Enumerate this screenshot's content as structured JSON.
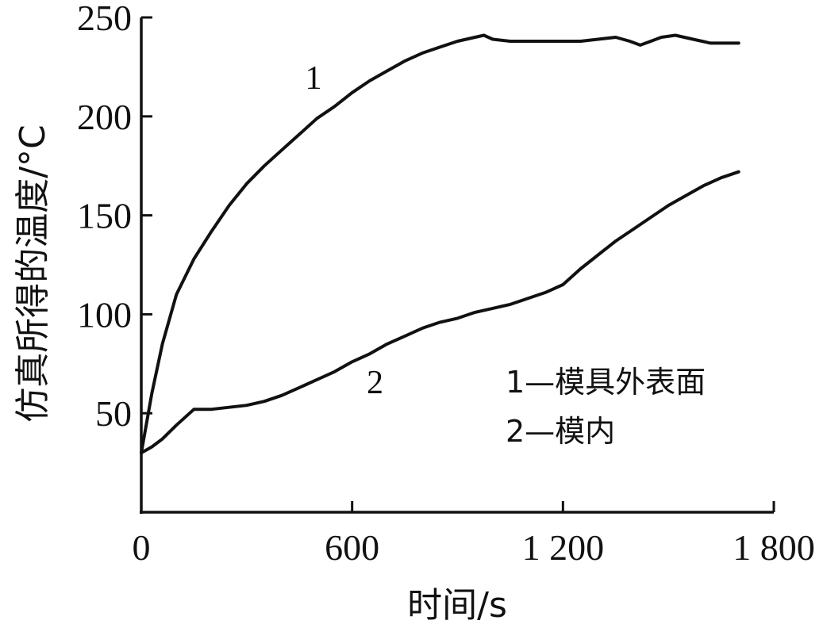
{
  "chart_data": {
    "type": "line",
    "xlabel": "时间/s",
    "ylabel": "仿真所得的温度/°C",
    "xlim": [
      0,
      1800
    ],
    "ylim": [
      0,
      250
    ],
    "x_ticks": [
      {
        "value": 0,
        "label": "0"
      },
      {
        "value": 600,
        "label": "600"
      },
      {
        "value": 1200,
        "label": "1 200"
      },
      {
        "value": 1800,
        "label": "1 800"
      }
    ],
    "y_ticks": [
      {
        "value": 50,
        "label": "50"
      },
      {
        "value": 100,
        "label": "100"
      },
      {
        "value": 150,
        "label": "150"
      },
      {
        "value": 200,
        "label": "200"
      },
      {
        "value": 250,
        "label": "250"
      }
    ],
    "grid": false,
    "series": [
      {
        "name": "1",
        "x": [
          0,
          30,
          60,
          100,
          150,
          200,
          250,
          300,
          350,
          400,
          450,
          500,
          550,
          600,
          650,
          700,
          750,
          800,
          850,
          900,
          950,
          975,
          1000,
          1050,
          1100,
          1150,
          1200,
          1250,
          1300,
          1350,
          1390,
          1420,
          1450,
          1480,
          1520,
          1570,
          1620,
          1700
        ],
        "y": [
          30,
          60,
          85,
          110,
          128,
          142,
          155,
          166,
          175,
          183,
          191,
          199,
          205,
          212,
          218,
          223,
          228,
          232,
          235,
          238,
          240,
          241,
          239,
          238,
          238,
          238,
          238,
          238,
          239,
          240,
          238,
          236,
          238,
          240,
          241,
          239,
          237,
          237
        ]
      },
      {
        "name": "2",
        "x": [
          0,
          30,
          60,
          100,
          150,
          200,
          250,
          300,
          350,
          400,
          450,
          500,
          550,
          600,
          650,
          700,
          750,
          800,
          850,
          900,
          950,
          1000,
          1050,
          1100,
          1150,
          1200,
          1250,
          1300,
          1350,
          1400,
          1450,
          1500,
          1550,
          1600,
          1650,
          1700
        ],
        "y": [
          30,
          33,
          37,
          44,
          52,
          52,
          53,
          54,
          56,
          59,
          63,
          67,
          71,
          76,
          80,
          85,
          89,
          93,
          96,
          98,
          101,
          103,
          105,
          108,
          111,
          115,
          123,
          130,
          137,
          143,
          149,
          155,
          160,
          165,
          169,
          172
        ]
      }
    ],
    "series_labels": [
      {
        "text": "1",
        "series": 0
      },
      {
        "text": "2",
        "series": 1
      }
    ],
    "legend": {
      "placement": "bottom-right",
      "entries": [
        "1—模具外表面",
        "2—模内"
      ]
    }
  }
}
